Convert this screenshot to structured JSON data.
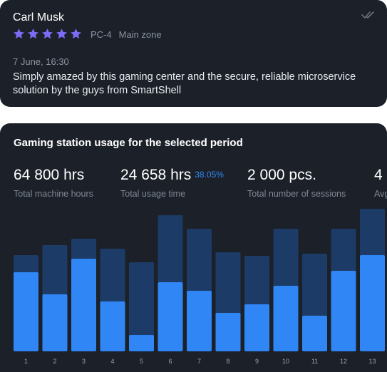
{
  "review": {
    "name": "Carl Musk",
    "rating": 5,
    "pc": "PC-4",
    "zone": "Main zone",
    "date": "7 June, 16:30",
    "text": "Simply amazed by this gaming center and the secure, reliable microservice solution by the guys from SmartShell",
    "star_color": "#7b6cf6",
    "check_icon": "double-check-icon"
  },
  "usage": {
    "title": "Gaming station usage for the selected period",
    "stats": [
      {
        "value": "64 800 hrs",
        "label": "Total machine hours"
      },
      {
        "value": "24 658 hrs",
        "percent": "38.05%",
        "label": "Total usage time"
      },
      {
        "value": "2 000 pcs.",
        "label": "Total number of sessions"
      },
      {
        "value": "4",
        "label": "Avg"
      }
    ]
  },
  "colors": {
    "card_bg": "#1c2129",
    "bar_total": "#1c3b67",
    "bar_used": "#2f86f4",
    "accent": "#2f86f4"
  },
  "chart_data": {
    "type": "bar",
    "categories": [
      "1",
      "2",
      "3",
      "4",
      "5",
      "6",
      "7",
      "8",
      "9",
      "10",
      "11",
      "12",
      "13"
    ],
    "series": [
      {
        "values": [
          135,
          149,
          158,
          144,
          125,
          191,
          172,
          139,
          134,
          172,
          137,
          172,
          200
        ]
      },
      {
        "values": [
          111,
          80,
          130,
          70,
          23,
          97,
          85,
          54,
          66,
          92,
          50,
          113,
          135
        ]
      }
    ],
    "ylim": [
      0,
      200
    ]
  }
}
